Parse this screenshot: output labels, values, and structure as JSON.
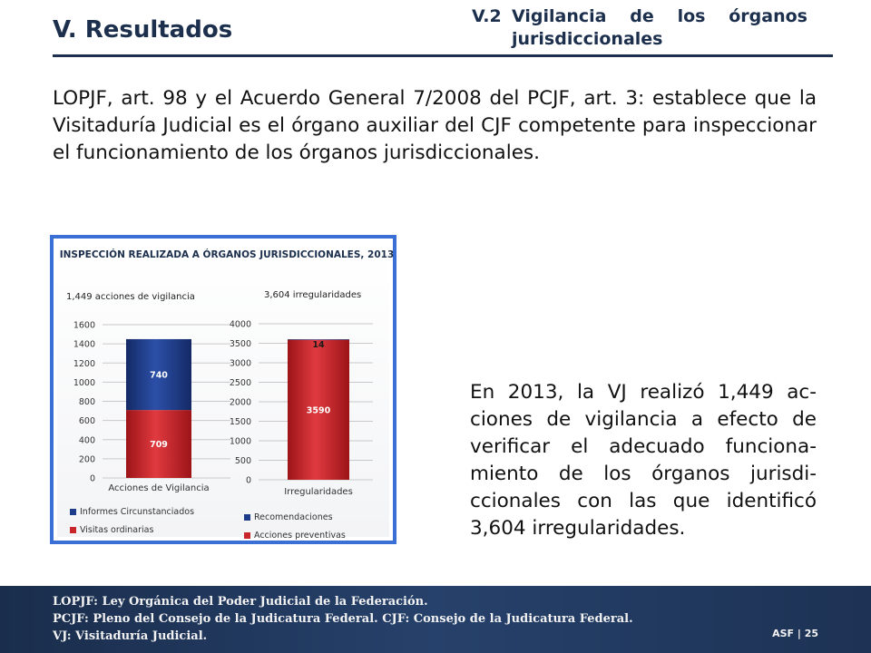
{
  "header": {
    "section_title": "V. Resultados",
    "subtitle_number": "V.2",
    "subtitle_text": "Vigilancia de los órganos jurisdiccionales"
  },
  "intro_text": "LOPJF, art. 98 y el Acuerdo General 7/2008 del PCJF, art. 3: establece que la Visitaduría Judicial es el órgano auxiliar del CJF competente para inspeccionar el funcionamiento de los órganos jurisdiccionales.",
  "body_text": "En 2013, la VJ realizó 1,449 ac-ciones de vigilancia a efecto de verificar el adecuado funciona-miento de los órganos jurisdi-ccionales con las que identificó 3,604 irregularidades.",
  "chart_data": [
    {
      "type": "bar",
      "stacked": true,
      "title": "INSPECCIÓN REALIZADA A ÓRGANOS JURISDICCIONALES, 2013",
      "subtitle": "1,449 acciones de vigilancia",
      "categories": [
        "Acciones de Vigilancia"
      ],
      "series": [
        {
          "name": "Visitas ordinarias",
          "values": [
            709
          ],
          "color": "#c8262b"
        },
        {
          "name": "Informes Circunstanciados",
          "values": [
            740
          ],
          "color": "#1e3c8c"
        }
      ],
      "ylim": [
        0,
        1600
      ],
      "yticks": [
        0,
        200,
        400,
        600,
        800,
        1000,
        1200,
        1400,
        1600
      ],
      "grid": true,
      "legend": "bottom"
    },
    {
      "type": "bar",
      "stacked": true,
      "subtitle": "3,604 irregularidades",
      "categories": [
        "Irregularidades"
      ],
      "series": [
        {
          "name": "Acciones preventivas",
          "values": [
            3590
          ],
          "color": "#c8262b"
        },
        {
          "name": "Recomendaciones",
          "values": [
            14
          ],
          "color": "#1e3c8c"
        }
      ],
      "ylim": [
        0,
        4000
      ],
      "yticks": [
        0,
        500,
        1000,
        1500,
        2000,
        2500,
        3000,
        3500,
        4000
      ],
      "grid": true,
      "legend": "bottom"
    }
  ],
  "footer": {
    "notes": [
      "LOPJF: Ley Orgánica del Poder Judicial de la Federación.",
      "PCJF: Pleno del Consejo de la Judicatura Federal. CJF: Consejo de la Judicatura Federal.",
      "VJ: Visitaduría Judicial."
    ],
    "page_label": "ASF | 25"
  }
}
